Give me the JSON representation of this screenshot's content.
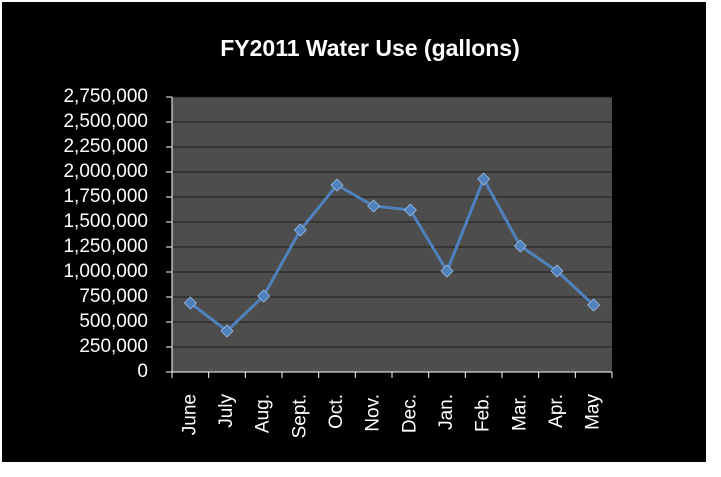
{
  "chart_data": {
    "type": "line",
    "title": "FY2011 Water Use (gallons)",
    "categories": [
      "June",
      "July",
      "Aug.",
      "Sept.",
      "Oct.",
      "Nov.",
      "Dec.",
      "Jan.",
      "Feb.",
      "Mar.",
      "Apr.",
      "May"
    ],
    "values": [
      690000,
      410000,
      760000,
      1420000,
      1870000,
      1660000,
      1620000,
      1010000,
      1930000,
      1260000,
      1010000,
      670000
    ],
    "color": "#4f81bd",
    "ylim": [
      0,
      2750000
    ],
    "yticks": [
      0,
      {
        "value": 250000,
        "label": "250,000"
      },
      {
        "value": 500000,
        "label": "500,000"
      },
      {
        "value": 750000,
        "label": "750,000"
      },
      {
        "value": 1000000,
        "label": "1,000,000"
      },
      {
        "value": 1250000,
        "label": "1,250,000"
      },
      {
        "value": 1500000,
        "label": "1,500,000"
      },
      {
        "value": 1750000,
        "label": "1,750,000"
      },
      {
        "value": 2000000,
        "label": "2,000,000"
      },
      {
        "value": 2250000,
        "label": "2,250,000"
      },
      {
        "value": 2500000,
        "label": "2,500,000"
      },
      {
        "value": 2750000,
        "label": "2,750,000"
      }
    ],
    "grid": true
  }
}
